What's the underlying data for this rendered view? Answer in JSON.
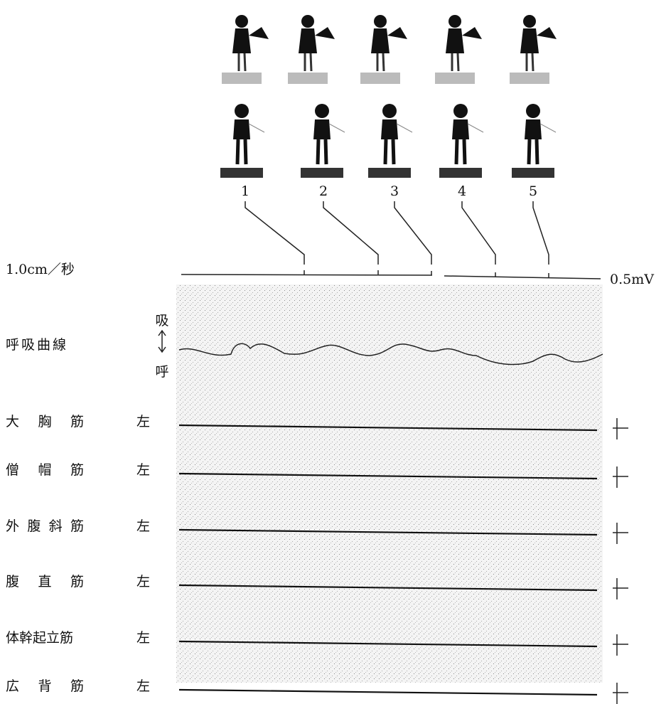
{
  "speed_label": "1.0cm／秒",
  "amplitude_label": "0.5mV",
  "frames": [
    "1",
    "2",
    "3",
    "4",
    "5"
  ],
  "respiration": {
    "label": "呼吸曲線",
    "inhale": "吸",
    "exhale": "呼"
  },
  "muscles": [
    {
      "name": "大胸筋",
      "side": "左"
    },
    {
      "name": "僧帽筋",
      "side": "左"
    },
    {
      "name": "外腹斜筋",
      "side": "左"
    },
    {
      "name": "腹直筋",
      "side": "左"
    },
    {
      "name": "体幹起立筋",
      "side": "左"
    },
    {
      "name": "広背筋",
      "side": "左"
    }
  ]
}
